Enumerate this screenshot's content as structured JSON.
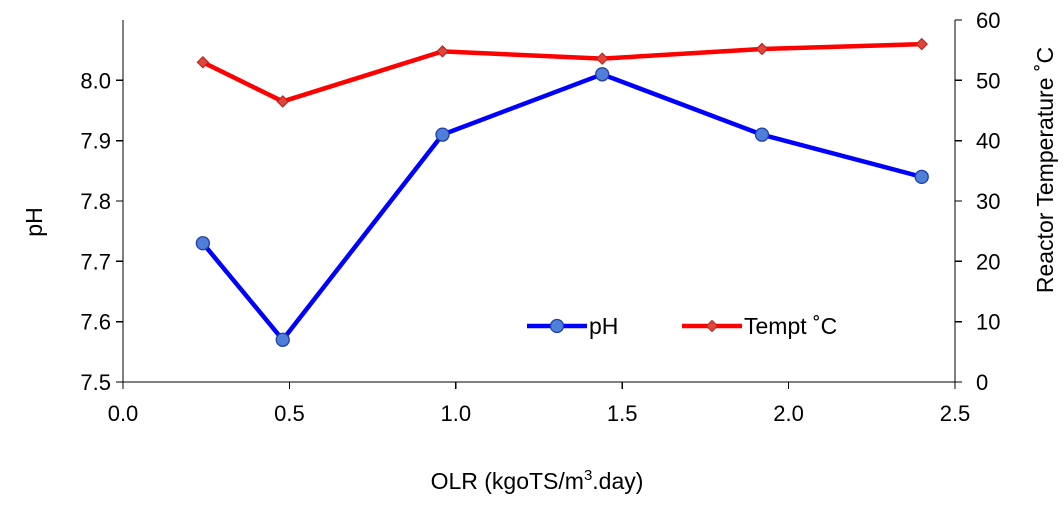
{
  "chart_data": {
    "type": "line",
    "title": "",
    "xlabel": "OLR (kgoTS/m³.day)",
    "xlabel_parts": {
      "before": "OLR (kgoTS/m",
      "sup": "3",
      "after": ".day)"
    },
    "ylabel": "pH",
    "y2label": "Reactor Temperature ˚C",
    "xlim": [
      0.0,
      2.5
    ],
    "ylim": [
      7.5,
      8.1
    ],
    "y2lim": [
      0,
      60
    ],
    "x_ticks": [
      "0.0",
      "0.5",
      "1.0",
      "1.5",
      "2.0",
      "2.5"
    ],
    "y_ticks": [
      "7.5",
      "7.6",
      "7.7",
      "7.8",
      "7.9",
      "8.0"
    ],
    "y2_ticks": [
      "0",
      "10",
      "20",
      "30",
      "40",
      "50",
      "60"
    ],
    "grid": false,
    "legend_position": "lower-right",
    "series": [
      {
        "name": "pH",
        "axis": "left",
        "color": "#0000FF",
        "marker_color": "#4F7FD8",
        "marker": "circle",
        "x": [
          0.24,
          0.48,
          0.96,
          1.44,
          1.92,
          2.4
        ],
        "y": [
          7.73,
          7.57,
          7.91,
          8.01,
          7.91,
          7.84
        ]
      },
      {
        "name": "Tempt ˚C",
        "axis": "right",
        "color": "#FF0000",
        "marker_color": "#E0453B",
        "marker": "diamond",
        "x": [
          0.24,
          0.48,
          0.96,
          1.44,
          1.92,
          2.4
        ],
        "y": [
          53.0,
          46.5,
          54.8,
          53.6,
          55.2,
          56.0
        ]
      }
    ]
  }
}
